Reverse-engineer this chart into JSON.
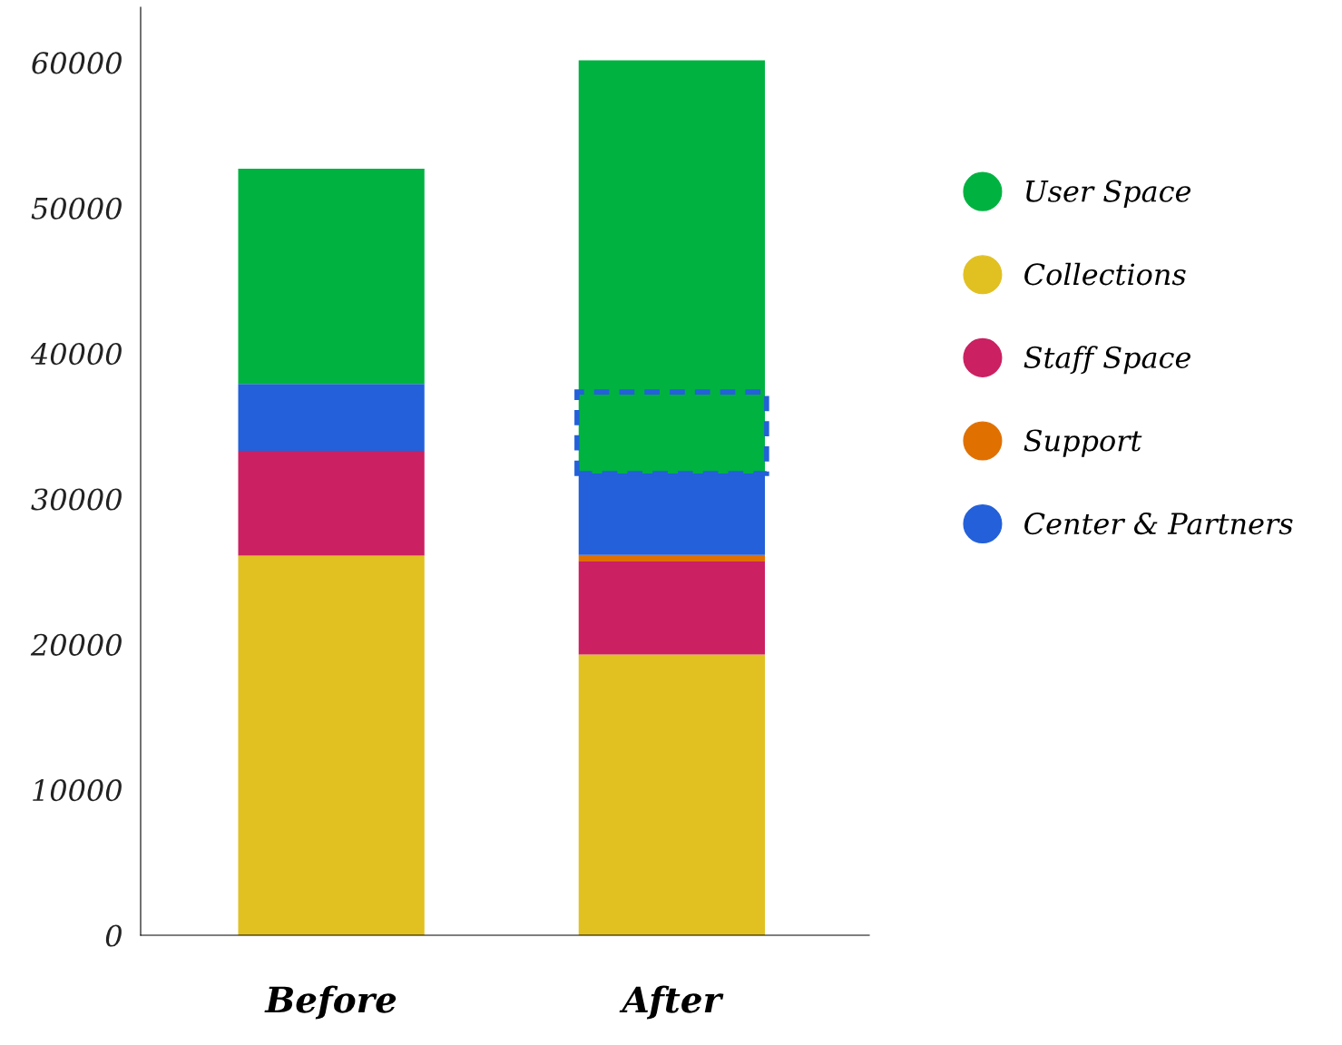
{
  "chart_data": {
    "type": "bar",
    "stacked": true,
    "categories": [
      "Before",
      "After"
    ],
    "series": [
      {
        "name": "Collections",
        "color": "#e1c022",
        "values": [
          26100,
          19300
        ]
      },
      {
        "name": "Staff Space",
        "color": "#cb2062",
        "values": [
          7200,
          6400
        ]
      },
      {
        "name": "Support",
        "color": "#e07000",
        "values": [
          0,
          450
        ]
      },
      {
        "name": "Center & Partners",
        "color": "#2360d9",
        "values": [
          4600,
          5600
        ]
      },
      {
        "name": "User Space",
        "color": "#00b240",
        "values": [
          14800,
          28400
        ]
      }
    ],
    "ylim": [
      0,
      63800
    ],
    "yticks": [
      0,
      10000,
      20000,
      30000,
      40000,
      50000,
      60000
    ],
    "grid": false,
    "legend": "right"
  }
}
